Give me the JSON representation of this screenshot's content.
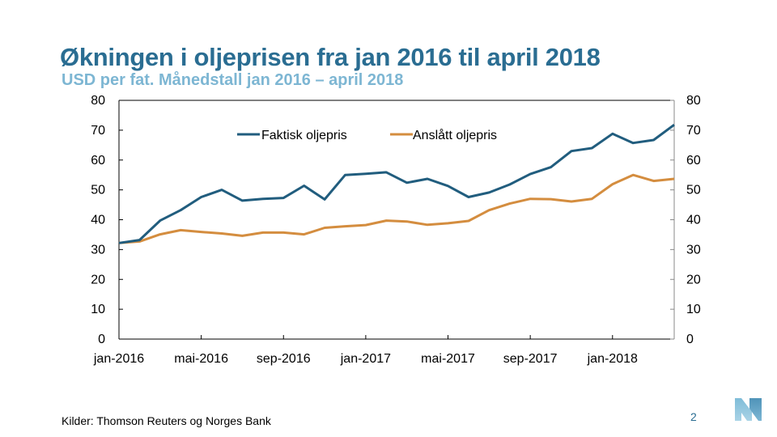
{
  "slide": {
    "title": "Økningen i oljeprisen fra jan 2016 til april 2018",
    "subtitle": "USD per fat. Månedstall jan 2016 – april 2018",
    "source": "Kilder: Thomson Reuters og Norges Bank",
    "page_number": "2"
  },
  "colors": {
    "title": "#2a6d92",
    "subtitle": "#7db6d3",
    "actual": "#215d7e",
    "forecast": "#d48d3f"
  },
  "chart_data": {
    "type": "line",
    "title": "",
    "xlabel": "",
    "ylabel": "",
    "ylim": [
      0,
      80
    ],
    "yticks": [
      "0",
      "10",
      "20",
      "30",
      "40",
      "50",
      "60",
      "70",
      "80"
    ],
    "ytick_values": [
      0,
      10,
      20,
      30,
      40,
      50,
      60,
      70,
      80
    ],
    "right_axis": true,
    "grid": false,
    "legend_position": "top-center",
    "x": [
      "jan-2016",
      "feb-2016",
      "mar-2016",
      "apr-2016",
      "mai-2016",
      "jun-2016",
      "jul-2016",
      "aug-2016",
      "sep-2016",
      "okt-2016",
      "nov-2016",
      "des-2016",
      "jan-2017",
      "feb-2017",
      "mar-2017",
      "apr-2017",
      "mai-2017",
      "jun-2017",
      "jul-2017",
      "aug-2017",
      "sep-2017",
      "okt-2017",
      "nov-2017",
      "des-2017",
      "jan-2018",
      "feb-2018",
      "mar-2018",
      "apr-2018"
    ],
    "xtick_labels": [
      {
        "index": 0,
        "label": "jan-2016"
      },
      {
        "index": 4,
        "label": "mai-2016"
      },
      {
        "index": 8,
        "label": "sep-2016"
      },
      {
        "index": 12,
        "label": "jan-2017"
      },
      {
        "index": 16,
        "label": "mai-2017"
      },
      {
        "index": 20,
        "label": "sep-2017"
      },
      {
        "index": 24,
        "label": "jan-2018"
      }
    ],
    "series": [
      {
        "name": "Faktisk oljepris",
        "values": [
          32.2,
          33.2,
          39.7,
          43.2,
          47.6,
          50.0,
          46.4,
          47.0,
          47.3,
          51.4,
          46.8,
          55.0,
          55.4,
          55.9,
          52.4,
          53.7,
          51.3,
          47.6,
          49.1,
          51.8,
          55.3,
          57.6,
          63.0,
          64.0,
          68.8,
          65.7,
          66.7,
          71.8
        ]
      },
      {
        "name": "Anslått oljepris",
        "values": [
          32.2,
          32.7,
          35.1,
          36.5,
          35.9,
          35.4,
          34.6,
          35.7,
          35.7,
          35.1,
          37.3,
          37.8,
          38.2,
          39.7,
          39.4,
          38.3,
          38.8,
          39.6,
          43.2,
          45.4,
          47.0,
          46.9,
          46.1,
          47.0,
          51.9,
          55.0,
          53.0,
          53.7
        ]
      }
    ]
  }
}
